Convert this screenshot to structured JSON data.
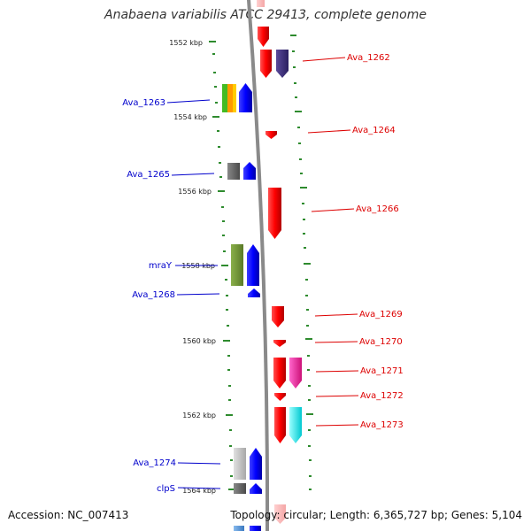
{
  "title": "Anabaena variabilis ATCC 29413, complete genome",
  "footer": {
    "accession": "Accession: NC_007413",
    "summary": "Topology: circular; Length: 6,365,727 bp; Genes: 5,104"
  },
  "colors": {
    "backbone": "#8a8a8a",
    "tick": "#2e8b2e",
    "reverse_label": "#0000cc",
    "forward_label": "#dd0000",
    "scale_label": "#222222"
  },
  "scale_labels": [
    "1552 kbp",
    "1554 kbp",
    "1556 kbp",
    "1558 kbp",
    "1560 kbp",
    "1562 kbp",
    "1564 kbp"
  ],
  "forward_labels": [
    "Ava_1262",
    "Ava_1264",
    "Ava_1266",
    "Ava_1269",
    "Ava_1270",
    "Ava_1271",
    "Ava_1272",
    "Ava_1273"
  ],
  "reverse_labels": [
    "Ava_1263",
    "Ava_1265",
    "mraY",
    "Ava_1268",
    "Ava_1274",
    "clpS"
  ]
}
